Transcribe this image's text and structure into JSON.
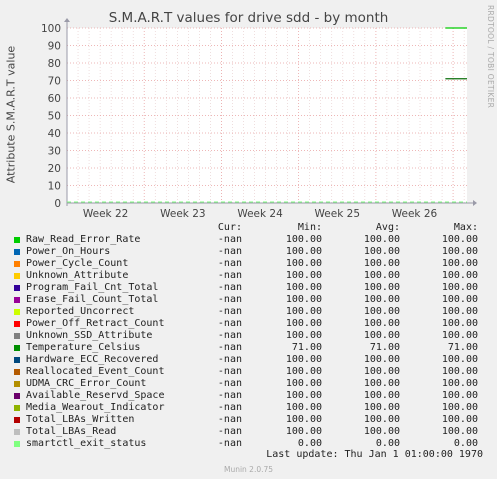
{
  "chart_data": {
    "type": "line",
    "title": "S.M.A.R.T values for drive sdd - by month",
    "ylabel": "Attribute S.M.A.R.T value",
    "xlabel": "",
    "ylim": [
      0,
      100
    ],
    "y_ticks": [
      0,
      10,
      20,
      30,
      40,
      50,
      60,
      70,
      80,
      90,
      100
    ],
    "x_ticks": [
      "Week 22",
      "Week 23",
      "Week 24",
      "Week 25",
      "Week 26"
    ],
    "x_tick_positions": [
      0.5,
      1.5,
      2.5,
      3.5,
      4.5
    ],
    "x_range": [
      0,
      5.18
    ],
    "grid": true,
    "series": [
      {
        "name": "Raw_Read_Error_Rate",
        "color": "#00cc00",
        "x_range": [
          4.9,
          5.18
        ],
        "value": 100
      },
      {
        "name": "Temperature_Celsius",
        "color": "#0b6e0b",
        "x_range": [
          4.9,
          5.18
        ],
        "value": 71
      },
      {
        "name": "smartctl_exit_status",
        "color": "#7fff7f",
        "x_range": [
          0,
          5.18
        ],
        "value": 0
      }
    ]
  },
  "watermark": "RRDTOOL / TOBI OETIKER",
  "legend": {
    "headers": {
      "cur": "Cur:",
      "min": "Min:",
      "avg": "Avg:",
      "max": "Max:"
    },
    "rows": [
      {
        "name": "Raw_Read_Error_Rate",
        "color": "#00cc00",
        "cur": "-nan",
        "min": "100.00",
        "avg": "100.00",
        "max": "100.00"
      },
      {
        "name": "Power_On_Hours",
        "color": "#0066b3",
        "cur": "-nan",
        "min": "100.00",
        "avg": "100.00",
        "max": "100.00"
      },
      {
        "name": "Power_Cycle_Count",
        "color": "#ff8000",
        "cur": "-nan",
        "min": "100.00",
        "avg": "100.00",
        "max": "100.00"
      },
      {
        "name": "Unknown_Attribute",
        "color": "#ffcc00",
        "cur": "-nan",
        "min": "100.00",
        "avg": "100.00",
        "max": "100.00"
      },
      {
        "name": "Program_Fail_Cnt_Total",
        "color": "#330099",
        "cur": "-nan",
        "min": "100.00",
        "avg": "100.00",
        "max": "100.00"
      },
      {
        "name": "Erase_Fail_Count_Total",
        "color": "#990099",
        "cur": "-nan",
        "min": "100.00",
        "avg": "100.00",
        "max": "100.00"
      },
      {
        "name": "Reported_Uncorrect",
        "color": "#ccff00",
        "cur": "-nan",
        "min": "100.00",
        "avg": "100.00",
        "max": "100.00"
      },
      {
        "name": "Power_Off_Retract_Count",
        "color": "#ff0000",
        "cur": "-nan",
        "min": "100.00",
        "avg": "100.00",
        "max": "100.00"
      },
      {
        "name": "Unknown_SSD_Attribute",
        "color": "#808080",
        "cur": "-nan",
        "min": "100.00",
        "avg": "100.00",
        "max": "100.00"
      },
      {
        "name": "Temperature_Celsius",
        "color": "#008f00",
        "cur": "-nan",
        "min": "71.00",
        "avg": "71.00",
        "max": "71.00"
      },
      {
        "name": "Hardware_ECC_Recovered",
        "color": "#00487d",
        "cur": "-nan",
        "min": "100.00",
        "avg": "100.00",
        "max": "100.00"
      },
      {
        "name": "Reallocated_Event_Count",
        "color": "#b35a00",
        "cur": "-nan",
        "min": "100.00",
        "avg": "100.00",
        "max": "100.00"
      },
      {
        "name": "UDMA_CRC_Error_Count",
        "color": "#b38f00",
        "cur": "-nan",
        "min": "100.00",
        "avg": "100.00",
        "max": "100.00"
      },
      {
        "name": "Available_Reservd_Space",
        "color": "#6b006b",
        "cur": "-nan",
        "min": "100.00",
        "avg": "100.00",
        "max": "100.00"
      },
      {
        "name": "Media_Wearout_Indicator",
        "color": "#8fb300",
        "cur": "-nan",
        "min": "100.00",
        "avg": "100.00",
        "max": "100.00"
      },
      {
        "name": "Total_LBAs_Written",
        "color": "#b30000",
        "cur": "-nan",
        "min": "100.00",
        "avg": "100.00",
        "max": "100.00"
      },
      {
        "name": "Total_LBAs_Read",
        "color": "#bebebe",
        "cur": "-nan",
        "min": "100.00",
        "avg": "100.00",
        "max": "100.00"
      },
      {
        "name": "smartctl_exit_status",
        "color": "#80ff80",
        "cur": "-nan",
        "min": "0.00",
        "avg": "0.00",
        "max": "0.00"
      }
    ]
  },
  "footer": {
    "last_update": "Last update: Thu Jan  1 01:00:00 1970",
    "munin_version": "Munin 2.0.75"
  }
}
